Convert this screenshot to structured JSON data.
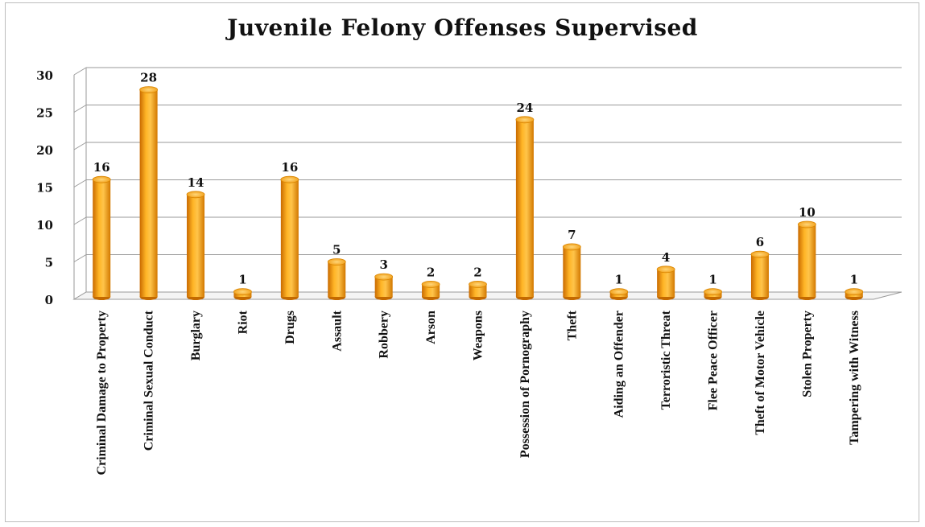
{
  "chart_data": {
    "type": "bar",
    "title": "Juvenile Felony Offenses Supervised",
    "xlabel": "",
    "ylabel": "",
    "ylim": [
      0,
      30
    ],
    "yticks": [
      0,
      5,
      10,
      15,
      20,
      25,
      30
    ],
    "grid": true,
    "legend": "none",
    "bar_color": "#F5A10E",
    "categories": [
      "Criminal Damage to Property",
      "Criminal Sexual Conduct",
      "Burglary",
      "Riot",
      "Drugs",
      "Assault",
      "Robbery",
      "Arson",
      "Weapons",
      "Possession of Pornography",
      "Theft",
      "Aiding an Offender",
      "Terroristic Threat",
      "Flee Peace Officer",
      "Theft of Motor Vehicle",
      "Stolen Property",
      "Tampering with Witness"
    ],
    "values": [
      16,
      28,
      14,
      1,
      16,
      5,
      3,
      2,
      2,
      24,
      7,
      1,
      4,
      1,
      6,
      10,
      1
    ]
  }
}
